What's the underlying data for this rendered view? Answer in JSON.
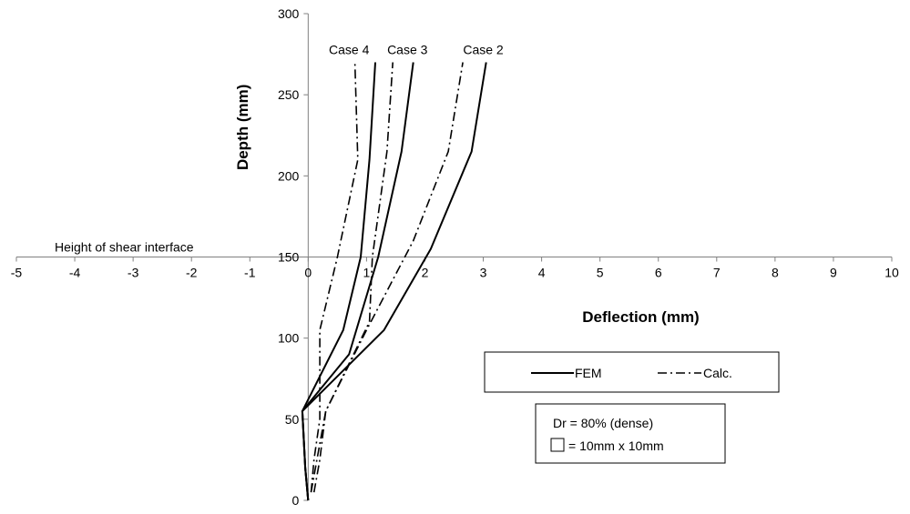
{
  "chart_data": {
    "type": "line",
    "title": "",
    "xlabel": "Deflection (mm)",
    "ylabel": "Depth (mm)",
    "xlim": [
      -5,
      10
    ],
    "ylim": [
      0,
      300
    ],
    "x_ticks": [
      -5,
      -4,
      -3,
      -2,
      -1,
      0,
      1,
      2,
      3,
      4,
      5,
      6,
      7,
      8,
      9,
      10
    ],
    "y_ticks": [
      0,
      50,
      100,
      150,
      200,
      250,
      300
    ],
    "legend": {
      "entries": [
        {
          "label": "FEM",
          "style": "solid"
        },
        {
          "label": "Calc.",
          "style": "dash-dot"
        }
      ],
      "placement": "lower-right"
    },
    "annotations": {
      "shear_interface": "Height of shear interface",
      "shear_interface_depth": 150,
      "info_line1": "Dr = 80% (dense)",
      "info_line2": "= 10mm x 10mm"
    },
    "series": [
      {
        "case": "Case 2",
        "method": "FEM",
        "style": "solid",
        "points": [
          [
            0,
            0
          ],
          [
            -0.05,
            20
          ],
          [
            -0.1,
            55
          ],
          [
            1.3,
            105
          ],
          [
            2.1,
            155
          ],
          [
            2.8,
            215
          ],
          [
            3.05,
            270
          ]
        ]
      },
      {
        "case": "Case 2",
        "method": "Calc.",
        "style": "dash-dot",
        "points": [
          [
            0.1,
            5
          ],
          [
            0.2,
            25
          ],
          [
            0.3,
            55
          ],
          [
            1.0,
            105
          ],
          [
            1.8,
            160
          ],
          [
            2.4,
            215
          ],
          [
            2.65,
            270
          ]
        ]
      },
      {
        "case": "Case 3",
        "method": "FEM",
        "style": "solid",
        "points": [
          [
            0,
            0
          ],
          [
            -0.05,
            20
          ],
          [
            -0.1,
            55
          ],
          [
            0.7,
            90
          ],
          [
            1.2,
            150
          ],
          [
            1.6,
            215
          ],
          [
            1.8,
            270
          ]
        ]
      },
      {
        "case": "Case 3",
        "method": "Calc.",
        "style": "dash-dot",
        "points": [
          [
            0.05,
            5
          ],
          [
            0.15,
            25
          ],
          [
            0.3,
            55
          ],
          [
            1.05,
            110
          ],
          [
            1.1,
            150
          ],
          [
            1.35,
            215
          ],
          [
            1.45,
            270
          ]
        ]
      },
      {
        "case": "Case 4",
        "method": "FEM",
        "style": "solid",
        "points": [
          [
            0,
            0
          ],
          [
            -0.05,
            20
          ],
          [
            -0.1,
            55
          ],
          [
            0.6,
            105
          ],
          [
            0.9,
            150
          ],
          [
            1.05,
            210
          ],
          [
            1.15,
            270
          ]
        ]
      },
      {
        "case": "Case 4",
        "method": "Calc.",
        "style": "dash-dot",
        "points": [
          [
            0.05,
            5
          ],
          [
            0.1,
            25
          ],
          [
            0.2,
            50
          ],
          [
            0.2,
            80
          ],
          [
            0.2,
            105
          ],
          [
            0.5,
            150
          ],
          [
            0.85,
            210
          ],
          [
            0.8,
            270
          ]
        ]
      }
    ],
    "case_labels": [
      {
        "text": "Case 4",
        "x": 0.7,
        "y": 275
      },
      {
        "text": "Case 3",
        "x": 1.7,
        "y": 275
      },
      {
        "text": "Case 2",
        "x": 3.0,
        "y": 275
      }
    ]
  }
}
